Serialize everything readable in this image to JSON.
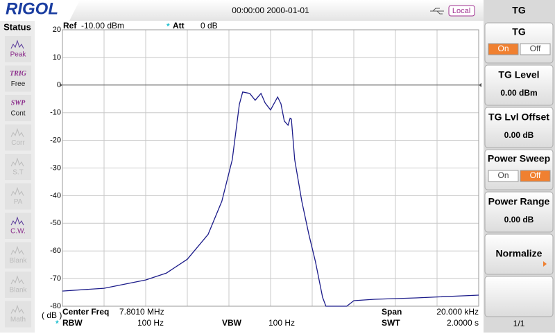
{
  "header": {
    "logo": "RIGOL",
    "datetime": "00:00:00 2000-01-01",
    "mode": "Local"
  },
  "status": {
    "title": "Status",
    "items": [
      {
        "label": "Peak"
      },
      {
        "tag": "TRIG",
        "label": "Free"
      },
      {
        "tag": "SWP",
        "label": "Cont"
      },
      {
        "label": "Corr"
      },
      {
        "label": "S.T"
      },
      {
        "label": "PA"
      },
      {
        "label": "C.W."
      },
      {
        "label": "Blank"
      },
      {
        "label": "Blank"
      },
      {
        "label": "Math"
      }
    ]
  },
  "menu": {
    "title": "TG",
    "page": "1/1",
    "buttons": [
      {
        "label": "TG",
        "options": [
          "On",
          "Off"
        ],
        "active": 0
      },
      {
        "label": "TG Level",
        "value": "0.00 dBm"
      },
      {
        "label": "TG Lvl Offset",
        "value": "0.00 dB"
      },
      {
        "label": "Power Sweep",
        "options": [
          "On",
          "Off"
        ],
        "active": 1
      },
      {
        "label": "Power Range",
        "value": "0.00 dB"
      },
      {
        "label": "Normalize"
      }
    ]
  },
  "plot": {
    "ref_label": "Ref",
    "ref": "-10.00 dBm",
    "att_label": "Att",
    "att": "0 dB",
    "unit": "( dB )",
    "ylim": [
      -80,
      20
    ],
    "yticks": [
      20,
      10,
      0,
      -10,
      -20,
      -30,
      -40,
      -50,
      -60,
      -70,
      -80
    ],
    "xlim": [
      0,
      10
    ],
    "trace": {
      "color": "#1c1c8a",
      "x": [
        0,
        1,
        2,
        2.5,
        3,
        3.5,
        3.83,
        4.08,
        4.25,
        4.33,
        4.5,
        4.63,
        4.77,
        4.87,
        5,
        5.17,
        5.25,
        5.33,
        5.42,
        5.47,
        5.5,
        5.58,
        5.75,
        5.92,
        6.08,
        6.25,
        6.33,
        6.83,
        7,
        7.5,
        8.5,
        10
      ],
      "values": [
        -74.5,
        -73.5,
        -70.5,
        -68,
        -63,
        -54,
        -42,
        -27,
        -7,
        -2.5,
        -3,
        -5.5,
        -3,
        -6.5,
        -9,
        -4.3,
        -6.8,
        -13,
        -14.5,
        -12,
        -12.3,
        -27,
        -42,
        -54,
        -64,
        -76.8,
        -80,
        -80,
        -78,
        -77.5,
        -77,
        -76
      ]
    }
  },
  "footer": {
    "center_label": "Center Freq",
    "center": "7.8010 MHz",
    "span_label": "Span",
    "span": "20.000 kHz",
    "rbw_label": "RBW",
    "rbw": "100 Hz",
    "vbw_label": "VBW",
    "vbw": "100 Hz",
    "swt_label": "SWT",
    "swt": "2.0000 s"
  }
}
